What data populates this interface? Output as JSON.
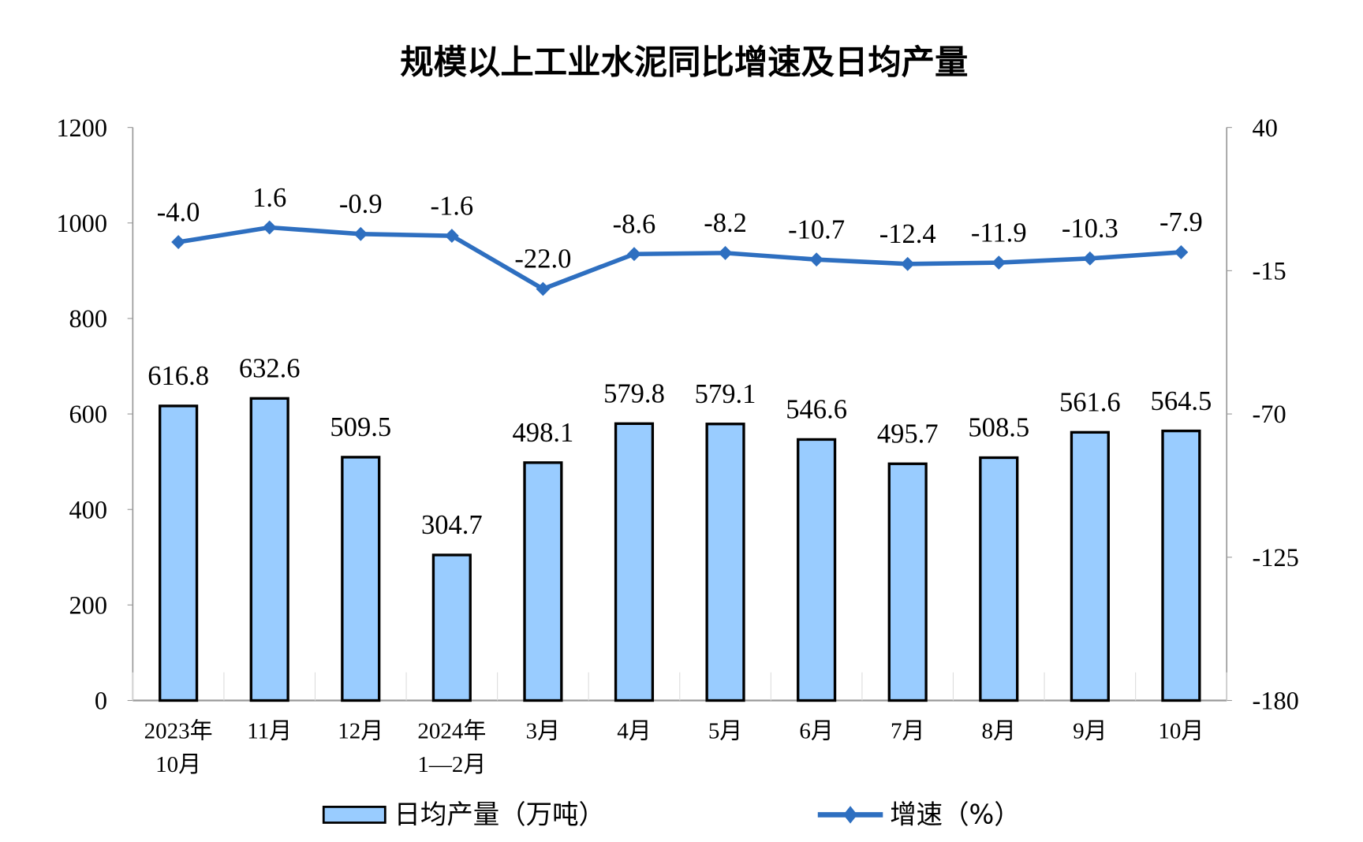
{
  "chart_data": {
    "type": "bar+line",
    "title": "规模以上工业水泥同比增速及日均产量",
    "categories": [
      [
        "2023年",
        "10月"
      ],
      [
        "11月"
      ],
      [
        "12月"
      ],
      [
        "2024年",
        "1—2月"
      ],
      [
        "3月"
      ],
      [
        "4月"
      ],
      [
        "5月"
      ],
      [
        "6月"
      ],
      [
        "7月"
      ],
      [
        "8月"
      ],
      [
        "9月"
      ],
      [
        "10月"
      ]
    ],
    "series": [
      {
        "name": "日均产量（万吨）",
        "type": "bar",
        "axis": "left",
        "color": "#99CCFF",
        "values": [
          616.8,
          632.6,
          509.5,
          304.7,
          498.1,
          579.8,
          579.1,
          546.6,
          495.7,
          508.5,
          561.6,
          564.5
        ]
      },
      {
        "name": "增速（%）",
        "type": "line",
        "axis": "right",
        "color": "#2E6FC0",
        "marker": "diamond",
        "values": [
          -4.0,
          1.6,
          -0.9,
          -1.6,
          -22.0,
          -8.6,
          -8.2,
          -10.7,
          -12.4,
          -11.9,
          -10.3,
          -7.9
        ]
      }
    ],
    "y_left": {
      "ylim": [
        0,
        1200
      ],
      "ticks": [
        "0",
        "200",
        "400",
        "600",
        "800",
        "1000",
        "1200"
      ]
    },
    "y_right": {
      "ylim": [
        -180,
        40
      ],
      "ticks": [
        "-180",
        "-125",
        "-70",
        "-15",
        "40"
      ]
    },
    "grid": false,
    "legend": "bottom"
  }
}
